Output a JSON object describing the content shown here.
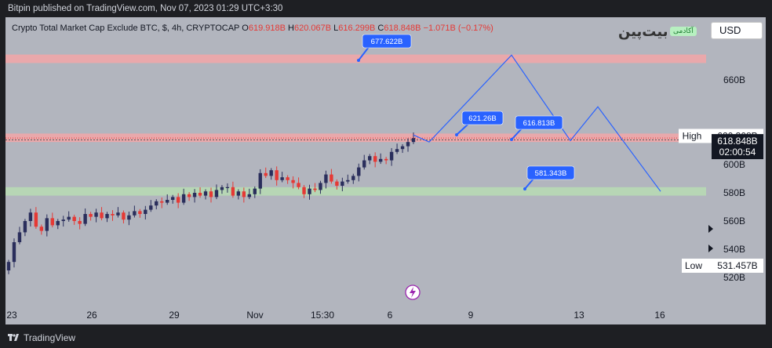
{
  "header": {
    "publisher_line": "Bitpin published on TradingView.com, Nov 07, 2023 01:29 UTC+3:30"
  },
  "footer": {
    "brand": "TradingView"
  },
  "toolbar": {
    "currency": "USD"
  },
  "legend": {
    "symbol": "Crypto Total Market Cap Exclude BTC, $, 4h, CRYPTOCAP",
    "open_label": "O",
    "open": "619.918B",
    "high_label": "H",
    "high": "620.067B",
    "low_label": "L",
    "low": "616.299B",
    "close_label": "C",
    "close": "618.848B",
    "change": "−1.071B (−0.17%)"
  },
  "watermark": {
    "brand": "بیت‌پین",
    "badge": "آکادمی"
  },
  "price_axis": {
    "high_label": "High",
    "high_value": "620.308B",
    "last_value": "618.848B",
    "countdown": "02:00:54",
    "low_label": "Low",
    "low_value": "531.457B"
  },
  "colors": {
    "up": "#2a2e5c",
    "down": "#e53935",
    "projection": "#2962ff",
    "resistance_zone": "#f6a5a6",
    "support_zone": "#b7dcb4",
    "callout": "#2962ff",
    "plot_bg": "#b2b5be"
  },
  "chart_data": {
    "type": "candlestick",
    "symbol": "CRYPTOCAP:TOTAL2",
    "timeframe": "4h",
    "ylim": [
      510,
      690
    ],
    "y_ticks": [
      "520B",
      "540B",
      "560B",
      "580B",
      "600B",
      "660B"
    ],
    "x_ticks": [
      "23",
      "26",
      "29",
      "Nov",
      "15:30",
      "6",
      "9",
      "13",
      "16"
    ],
    "close_path": [
      531,
      545,
      552,
      560,
      566,
      556,
      553,
      562,
      557,
      560,
      561,
      563,
      560,
      558,
      565,
      563,
      566,
      562,
      565,
      564,
      566,
      561,
      564,
      567,
      565,
      568,
      571,
      574,
      573,
      575,
      577,
      573,
      579,
      577,
      580,
      578,
      581,
      577,
      582,
      584,
      584,
      578,
      581,
      577,
      579,
      583,
      594,
      592,
      596,
      589,
      591,
      589,
      587,
      584,
      579,
      583,
      582,
      587,
      593,
      588,
      585,
      588,
      589,
      592,
      598,
      603,
      606,
      602,
      604,
      603,
      609,
      611,
      613,
      616,
      618.848
    ],
    "zones": [
      {
        "low": 672,
        "high": 678
      },
      {
        "low": 616,
        "high": 622
      },
      {
        "low": 578,
        "high": 584
      }
    ],
    "projection": [
      {
        "t": 0,
        "v": 621
      },
      {
        "t": 1,
        "v": 616
      },
      {
        "t": 2,
        "v": 677.6
      },
      {
        "t": 3,
        "v": 617
      },
      {
        "t": 4,
        "v": 641
      },
      {
        "t": 5,
        "v": 581
      }
    ],
    "annotations": [
      "677.622B",
      "621.26B",
      "616.813B",
      "581.343B"
    ]
  }
}
